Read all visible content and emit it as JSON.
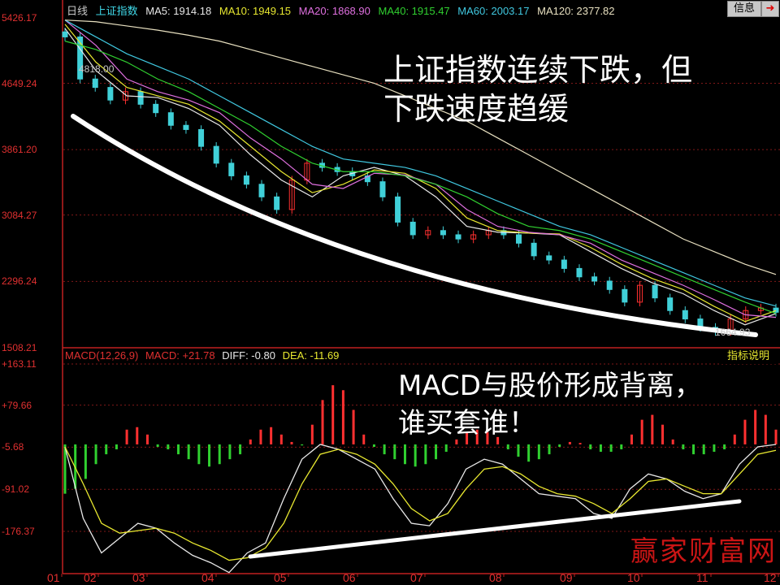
{
  "header": {
    "period": "日线",
    "index_name": "上证指数",
    "ma": [
      {
        "label": "MA5: 1914.18",
        "color": "#e8e8e8"
      },
      {
        "label": "MA10: 1949.15",
        "color": "#e8e830"
      },
      {
        "label": "MA20: 1868.90",
        "color": "#e070e0"
      },
      {
        "label": "MA40: 1915.47",
        "color": "#30d030"
      },
      {
        "label": "MA60: 2003.17",
        "color": "#40c8e0"
      },
      {
        "label": "MA120: 2377.82",
        "color": "#e8e0c0"
      }
    ],
    "info_button": "信息",
    "exit_icon": "exit-icon"
  },
  "macd_header": {
    "title": "MACD(12,26,9)",
    "macd": "MACD: +21.78",
    "diff": "DIFF: -0.80",
    "dea": "DEA: -11.69",
    "help_button": "指标说明"
  },
  "annotations": {
    "price_note": "上证指数连续下跌，但\n下跌速度趋缓",
    "macd_note": "MACD与股价形成背离，\n谁买套谁！",
    "high_tag": "4818.00",
    "low_tag": "1664.93"
  },
  "watermark": "赢家财富网",
  "chart_data": [
    {
      "type": "candlestick",
      "ylim": [
        1508.21,
        5426.17
      ],
      "yticks": [
        "5426.17",
        "4649.24",
        "3861.20",
        "3084.27",
        "2296.24",
        "1508.21"
      ],
      "xticks": [
        "01",
        "02",
        "03",
        "04",
        "05",
        "06",
        "07",
        "08",
        "09",
        "10",
        "11",
        "12"
      ],
      "close": [
        5200,
        4700,
        4600,
        4450,
        4550,
        4400,
        4300,
        4150,
        4100,
        3900,
        3700,
        3550,
        3450,
        3300,
        3150,
        3500,
        3700,
        3650,
        3600,
        3550,
        3480,
        3300,
        3000,
        2850,
        2900,
        2850,
        2800,
        2850,
        2900,
        2850,
        2750,
        2600,
        2550,
        2450,
        2350,
        2300,
        2200,
        2050,
        2250,
        2100,
        1950,
        1850,
        1750,
        1700,
        1850,
        1950,
        1980,
        1930
      ],
      "series": [
        {
          "name": "MA5",
          "color": "#e8e8e8",
          "values": [
            5300,
            4800,
            4500,
            4480,
            4350,
            4150,
            3800,
            3500,
            3300,
            3550,
            3650,
            3550,
            3300,
            2950,
            2880,
            2870,
            2850,
            2650,
            2450,
            2280,
            2150,
            1950,
            1780,
            1914
          ]
        },
        {
          "name": "MA10",
          "color": "#e8e830",
          "values": [
            5350,
            4900,
            4600,
            4500,
            4400,
            4200,
            3900,
            3600,
            3350,
            3450,
            3620,
            3580,
            3400,
            3050,
            2900,
            2870,
            2860,
            2700,
            2500,
            2330,
            2200,
            2000,
            1820,
            1949
          ]
        },
        {
          "name": "MA20",
          "color": "#e070e0",
          "values": [
            5400,
            5100,
            4700,
            4550,
            4450,
            4300,
            4000,
            3750,
            3450,
            3400,
            3580,
            3560,
            3450,
            3150,
            2950,
            2880,
            2850,
            2750,
            2550,
            2400,
            2250,
            2080,
            1900,
            1869
          ]
        },
        {
          "name": "MA40",
          "color": "#30d030",
          "values": [
            5150,
            5050,
            4900,
            4700,
            4550,
            4350,
            4150,
            3900,
            3700,
            3600,
            3600,
            3550,
            3450,
            3300,
            3100,
            2950,
            2900,
            2800,
            2650,
            2500,
            2350,
            2200,
            2050,
            1915
          ]
        },
        {
          "name": "MA60",
          "color": "#40c8e0",
          "values": [
            5400,
            5200,
            5000,
            4850,
            4700,
            4500,
            4300,
            4100,
            3900,
            3750,
            3700,
            3650,
            3550,
            3400,
            3250,
            3100,
            2950,
            2850,
            2700,
            2550,
            2400,
            2250,
            2100,
            2003
          ]
        },
        {
          "name": "MA120",
          "color": "#e8e0c0",
          "values": [
            5400,
            5380,
            5330,
            5280,
            5220,
            5150,
            5050,
            4950,
            4850,
            4750,
            4650,
            4500,
            4350,
            4200,
            4000,
            3800,
            3600,
            3400,
            3200,
            3000,
            2800,
            2650,
            2500,
            2378
          ]
        }
      ]
    },
    {
      "type": "macd",
      "ylim": [
        -260,
        163.11
      ],
      "yticks": [
        "+163.11",
        "+79.66",
        "-5.68",
        "-91.02",
        "-176.37"
      ],
      "histogram": [
        -100,
        -90,
        -70,
        -40,
        -20,
        -10,
        30,
        35,
        20,
        -5,
        -10,
        -20,
        -30,
        -40,
        -45,
        -40,
        -30,
        -20,
        10,
        30,
        35,
        20,
        5,
        -2,
        40,
        90,
        120,
        110,
        70,
        20,
        -5,
        -20,
        -30,
        -40,
        -45,
        -40,
        -30,
        -15,
        10,
        25,
        30,
        25,
        15,
        -10,
        -25,
        -35,
        -30,
        -20,
        -5,
        5,
        3,
        -10,
        -15,
        -15,
        -10,
        20,
        50,
        60,
        40,
        10,
        -10,
        -20,
        -20,
        -15,
        -10,
        20,
        50,
        70,
        60,
        30
      ],
      "series": [
        {
          "name": "DIFF",
          "color": "#e8e8e8",
          "values": [
            -5,
            -150,
            -220,
            -190,
            -160,
            -170,
            -200,
            -225,
            -240,
            -260,
            -220,
            -200,
            -110,
            -30,
            0,
            -10,
            -30,
            -50,
            -110,
            -160,
            -165,
            -120,
            -50,
            -30,
            -40,
            -70,
            -100,
            -105,
            -110,
            -140,
            -150,
            -90,
            -60,
            -70,
            -95,
            -110,
            -100,
            -40,
            -5,
            0
          ]
        },
        {
          "name": "DEA",
          "color": "#e8e830",
          "values": [
            -5,
            -80,
            -160,
            -180,
            -175,
            -170,
            -180,
            -200,
            -215,
            -235,
            -230,
            -210,
            -160,
            -80,
            -20,
            -10,
            -20,
            -40,
            -80,
            -130,
            -155,
            -140,
            -90,
            -50,
            -45,
            -60,
            -85,
            -100,
            -105,
            -120,
            -140,
            -110,
            -75,
            -70,
            -85,
            -100,
            -100,
            -60,
            -20,
            -12
          ]
        }
      ]
    }
  ]
}
